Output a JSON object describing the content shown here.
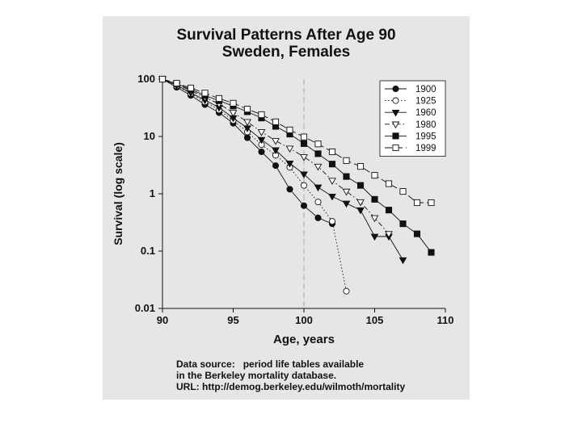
{
  "chart_data": {
    "type": "line",
    "title": "Survival Patterns After Age 90",
    "subtitle": "Sweden, Females",
    "xlabel": "Age, years",
    "ylabel": "Survival (log scale)",
    "xlim": [
      90,
      110
    ],
    "ylim": [
      0.01,
      100
    ],
    "yscale": "log",
    "x_ticks": [
      "90",
      "95",
      "100",
      "105",
      "110"
    ],
    "y_ticks": [
      "0.01",
      "0.1",
      "1",
      "10",
      "100"
    ],
    "reference_line_x": 100,
    "grid": false,
    "legend_position": "top-right",
    "series": [
      {
        "name": "1900",
        "marker": "circle-filled",
        "dash": "solid",
        "x": [
          90,
          91,
          92,
          93,
          94,
          95,
          96,
          97,
          98,
          99,
          100,
          101,
          102
        ],
        "y": [
          100,
          72,
          52,
          36,
          26,
          17,
          9.5,
          5.4,
          3.1,
          1.2,
          0.62,
          0.38,
          0.3
        ]
      },
      {
        "name": "1925",
        "marker": "circle-open",
        "dash": "dotted",
        "x": [
          90,
          91,
          92,
          93,
          94,
          95,
          96,
          97,
          98,
          99,
          100,
          101,
          102,
          103
        ],
        "y": [
          100,
          76,
          56,
          40,
          29,
          19,
          12,
          7.2,
          4.7,
          2.9,
          1.4,
          0.72,
          0.33,
          0.02
        ]
      },
      {
        "name": "1960",
        "marker": "triangle-down-filled",
        "dash": "solid",
        "x": [
          90,
          91,
          92,
          93,
          94,
          95,
          96,
          97,
          98,
          99,
          100,
          101,
          102,
          103,
          104,
          105,
          106,
          107
        ],
        "y": [
          100,
          78,
          58,
          43,
          32,
          21,
          14,
          8.8,
          5.8,
          3.4,
          2.2,
          1.3,
          0.9,
          0.68,
          0.52,
          0.18,
          0.18,
          0.07
        ]
      },
      {
        "name": "1980",
        "marker": "triangle-down-open",
        "dash": "dash-dot",
        "x": [
          90,
          91,
          92,
          93,
          94,
          95,
          96,
          97,
          98,
          99,
          100,
          101,
          102,
          103,
          104,
          105,
          106
        ],
        "y": [
          100,
          81,
          63,
          48,
          37,
          26,
          18,
          12,
          8.4,
          6.2,
          4.4,
          3.0,
          1.7,
          1.1,
          0.72,
          0.38,
          0.2
        ]
      },
      {
        "name": "1995",
        "marker": "square-filled",
        "dash": "solid",
        "x": [
          90,
          91,
          92,
          93,
          94,
          95,
          96,
          97,
          98,
          99,
          100,
          101,
          102,
          103,
          104,
          105,
          106,
          107,
          108,
          109
        ],
        "y": [
          100,
          83,
          66,
          52,
          42,
          34,
          27,
          21,
          15,
          11,
          7.5,
          5.0,
          3.3,
          2.0,
          1.4,
          0.8,
          0.52,
          0.3,
          0.2,
          0.095
        ]
      },
      {
        "name": "1999",
        "marker": "square-open",
        "dash": "long-dash",
        "x": [
          90,
          91,
          92,
          93,
          94,
          95,
          96,
          97,
          98,
          99,
          100,
          101,
          102,
          103,
          104,
          105,
          106,
          107,
          108,
          109
        ],
        "y": [
          100,
          85,
          70,
          57,
          46,
          38,
          30,
          24,
          18,
          13,
          9.8,
          7.4,
          5.4,
          3.8,
          3.0,
          2.1,
          1.5,
          1.1,
          0.7,
          0.7
        ]
      }
    ]
  },
  "source_note": {
    "line1": "Data source:   period life tables available",
    "line2": "in the Berkeley mortality database.",
    "line3": "URL: http://demog.berkeley.edu/wilmoth/mortality"
  },
  "colors": {
    "panel": "#e6e6e6",
    "ink": "#111111",
    "reference_line": "#aaaaaa"
  }
}
